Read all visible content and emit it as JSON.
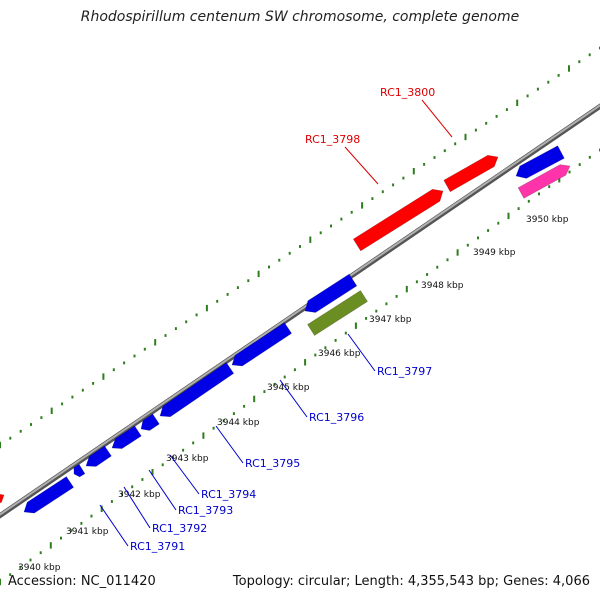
{
  "header": {
    "title": "Rhodospirillum centenum SW chromosome, complete genome"
  },
  "footer": {
    "accession": "Accession: NC_011420",
    "summary": "Topology: circular; Length: 4,355,543 bp; Genes: 4,066"
  },
  "colors": {
    "backbone": "#7a7a7a",
    "tick_marks": "#2e7d1e",
    "forward_gene": "#ff0000",
    "reverse_gene": "#0000e6",
    "pink_gene": "#ff33aa",
    "olive_gene": "#6b8e23",
    "forward_label": "#dd0000",
    "reverse_label": "#0000cc"
  },
  "scale_labels": [
    "3940 kbp",
    "3941 kbp",
    "3942 kbp",
    "3943 kbp",
    "3944 kbp",
    "3945 kbp",
    "3946 kbp",
    "3947 kbp",
    "3948 kbp",
    "3949 kbp",
    "3950 kbp"
  ],
  "gene_labels": {
    "forward": [
      "RC1_3798",
      "RC1_3800"
    ],
    "reverse": [
      "RC1_3791",
      "RC1_3792",
      "RC1_3793",
      "RC1_3794",
      "RC1_3795",
      "RC1_3796",
      "RC1_3797"
    ]
  }
}
